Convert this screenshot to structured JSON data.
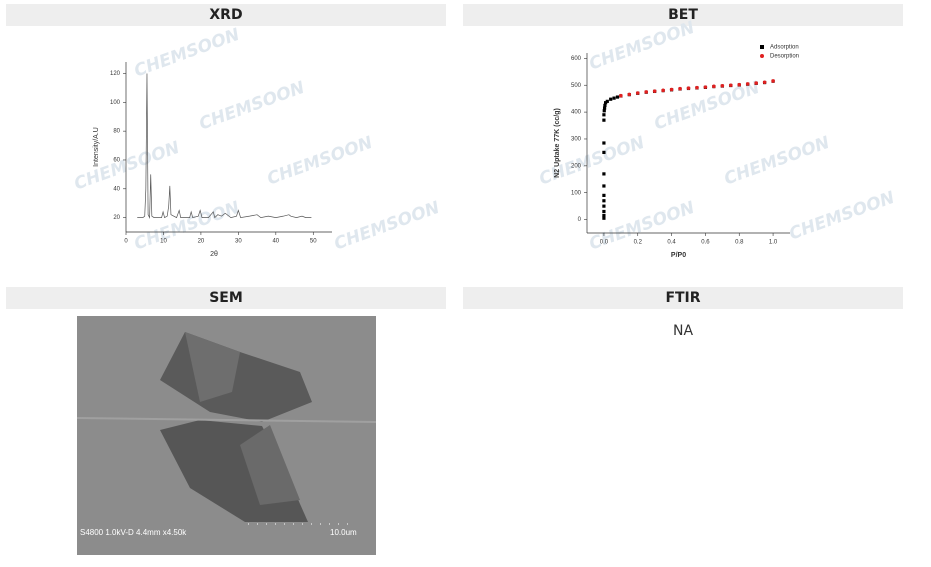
{
  "panels": [
    {
      "title": "XRD"
    },
    {
      "title": "BET"
    },
    {
      "title": "SEM"
    },
    {
      "title": "FTIR"
    }
  ],
  "watermark": "CHEMSOON",
  "chart_data": [
    {
      "type": "line",
      "xlabel": "2θ",
      "ylabel": "Intensity/A.U",
      "color": "#555555",
      "xlim": [
        0,
        55
      ],
      "xticks": [
        0,
        10,
        20,
        30,
        40,
        50
      ],
      "ylim": [
        10,
        128
      ],
      "yticks": [
        20,
        40,
        60,
        80,
        100,
        120
      ],
      "x": [
        3,
        4.5,
        5,
        5.3,
        5.6,
        5.9,
        6.3,
        6.6,
        6.9,
        7.5,
        9.5,
        9.9,
        10.3,
        11,
        11.4,
        11.7,
        12,
        13.5,
        14.2,
        14.6,
        17,
        17.4,
        17.8,
        19.3,
        19.8,
        20.3,
        22,
        23.3,
        23.7,
        24.5,
        25.5,
        26.5,
        28,
        29.5,
        30,
        30.6,
        33,
        35,
        36,
        38,
        40,
        42,
        43.5,
        44,
        45.5,
        47,
        48,
        49.5
      ],
      "values": [
        20,
        20,
        21,
        40,
        120,
        22,
        20,
        50,
        21,
        20,
        20,
        24,
        20,
        21,
        28,
        42,
        22,
        20,
        25,
        20,
        20,
        24,
        20,
        21,
        25,
        20,
        20,
        24,
        20,
        22,
        21,
        23,
        20,
        21,
        25,
        20,
        21,
        22,
        20,
        21,
        20,
        21,
        22,
        21,
        20,
        21,
        20,
        20
      ]
    },
    {
      "type": "scatter",
      "xlabel": "P/P0",
      "ylabel": "N2 Uptake 77K (cc/g)",
      "legend": "upper right",
      "xlim": [
        -0.1,
        1.1
      ],
      "xticks": [
        {
          "value": 0,
          "label": "0.0"
        },
        0.2,
        0.4,
        0.6,
        0.8,
        {
          "value": 1,
          "label": "1.0"
        }
      ],
      "ylim": [
        -50,
        620
      ],
      "yticks": [
        0,
        100,
        200,
        300,
        400,
        500,
        600
      ],
      "series": [
        {
          "name": "Adsorption",
          "color": "#000000",
          "x": [
            0,
            0,
            0,
            0,
            0,
            0,
            0,
            0,
            0,
            0,
            0,
            0,
            0.002,
            0.004,
            0.006,
            0.01,
            0.02,
            0.04,
            0.06,
            0.08,
            0.1,
            0.15,
            0.2,
            0.25,
            0.3,
            0.35,
            0.4,
            0.45,
            0.5,
            0.55,
            0.6,
            0.65,
            0.7,
            0.75,
            0.8,
            0.85,
            0.9,
            0.95,
            1.0
          ],
          "values": [
            5,
            15,
            30,
            50,
            70,
            90,
            125,
            170,
            250,
            285,
            370,
            390,
            405,
            415,
            425,
            435,
            440,
            448,
            452,
            456,
            460,
            465,
            470,
            474,
            477,
            480,
            483,
            486,
            488,
            490,
            492,
            495,
            497,
            499,
            501,
            504,
            507,
            510,
            515
          ]
        },
        {
          "name": "Desorption",
          "color": "#e02020",
          "x": [
            1.0,
            0.95,
            0.9,
            0.85,
            0.8,
            0.75,
            0.7,
            0.65,
            0.6,
            0.55,
            0.5,
            0.45,
            0.4,
            0.35,
            0.3,
            0.25,
            0.2,
            0.15,
            0.1
          ],
          "values": [
            516,
            511,
            508,
            505,
            502,
            500,
            498,
            496,
            493,
            491,
            489,
            487,
            484,
            481,
            478,
            475,
            471,
            466,
            461
          ]
        }
      ]
    }
  ],
  "sem": {
    "caption": "S4800 1.0kV-D 4.4mm x4.50k",
    "scale": "10.0um"
  },
  "ftir": {
    "text": "NA"
  }
}
